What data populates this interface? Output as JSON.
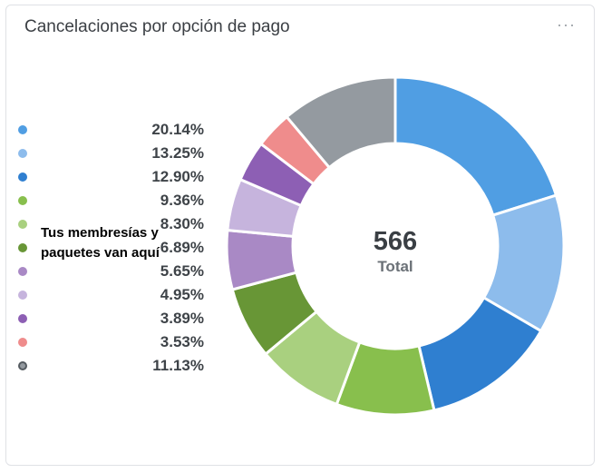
{
  "card": {
    "title": "Cancelaciones por opción de pago",
    "menu_icon": "more-horizontal-icon"
  },
  "note": "Tus membresías y paquetes van aquí",
  "chart_data": {
    "type": "pie",
    "donut": true,
    "total_value": "566",
    "total_label": "Total",
    "slices": [
      {
        "value": 20.14,
        "label": "20.14%",
        "color": "#509ee3"
      },
      {
        "value": 13.25,
        "label": "13.25%",
        "color": "#8dbcec"
      },
      {
        "value": 12.9,
        "label": "12.90%",
        "color": "#2f7fd0"
      },
      {
        "value": 9.36,
        "label": "9.36%",
        "color": "#88bf4d"
      },
      {
        "value": 8.3,
        "label": "8.30%",
        "color": "#a9d07f"
      },
      {
        "value": 6.89,
        "label": "6.89%",
        "color": "#689636"
      },
      {
        "value": 5.65,
        "label": "5.65%",
        "color": "#a989c5"
      },
      {
        "value": 4.95,
        "label": "4.95%",
        "color": "#c6b4dd"
      },
      {
        "value": 3.89,
        "label": "3.89%",
        "color": "#8d5fb4"
      },
      {
        "value": 3.53,
        "label": "3.53%",
        "color": "#ef8c8c"
      },
      {
        "value": 11.13,
        "label": "11.13%",
        "color": "#949aa0"
      }
    ]
  }
}
